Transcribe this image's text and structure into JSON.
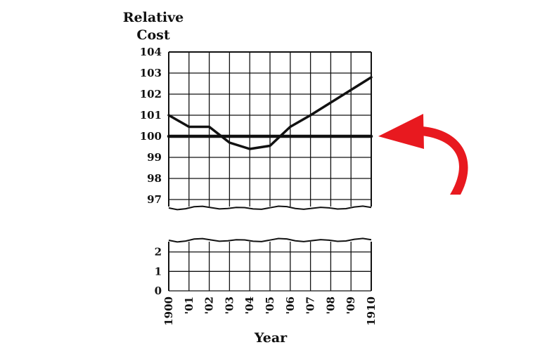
{
  "chart_data": {
    "type": "line",
    "ylabel": "Relative Cost",
    "xlabel": "Year",
    "x_ticks": [
      "1900",
      "'01",
      "'02",
      "'03",
      "'04",
      "'05",
      "'06",
      "'07",
      "'08",
      "'09",
      "1910"
    ],
    "y_ticks_upper": [
      "104",
      "103",
      "102",
      "101",
      "100",
      "99",
      "98",
      "97"
    ],
    "y_ticks_lower": [
      "2",
      "1",
      "0"
    ],
    "axis_break": true,
    "ylim_upper": [
      96.6,
      104
    ],
    "ylim_lower": [
      0,
      2.6
    ],
    "grid": true,
    "series": [
      {
        "x": [
          1900,
          1901,
          1902,
          1903,
          1904,
          1905,
          1906,
          1907,
          1908,
          1909,
          1910
        ],
        "values": [
          101.0,
          100.45,
          100.45,
          99.7,
          99.4,
          99.55,
          100.45,
          101.0,
          101.6,
          102.2,
          102.8
        ]
      },
      {
        "x": [
          1900,
          1910
        ],
        "values": [
          100,
          100
        ]
      }
    ],
    "annotation": {
      "type": "arrow",
      "color": "#e8191f",
      "points_to": 100
    }
  }
}
